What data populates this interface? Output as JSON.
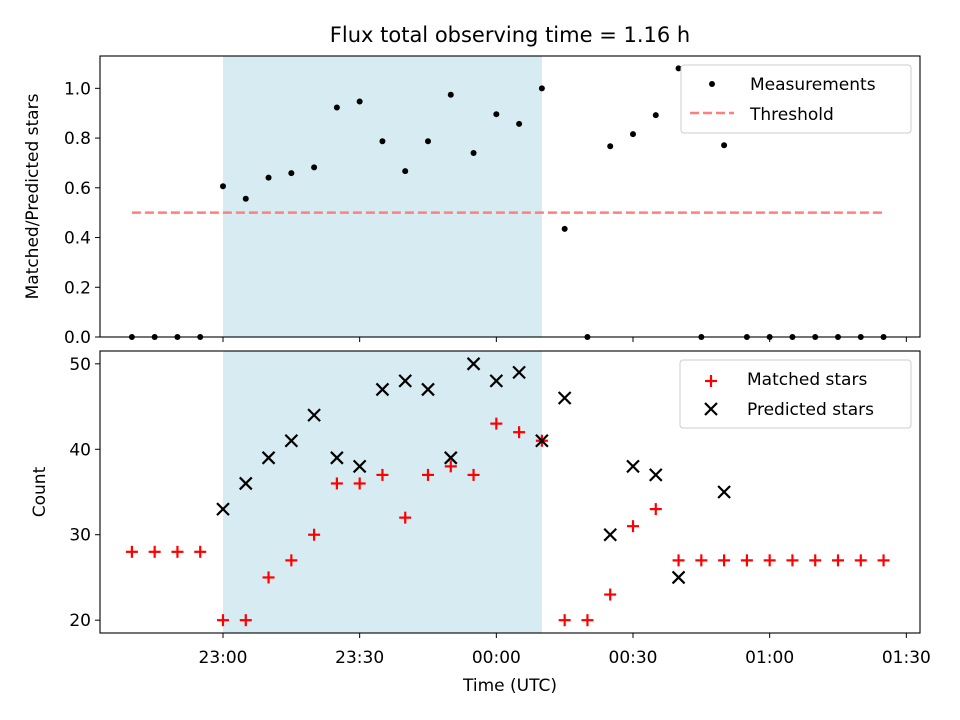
{
  "chart_data": [
    {
      "type": "scatter",
      "title": "Flux total observing time = 1.16 h",
      "xlabel": "",
      "ylabel": "Matched/Predicted stars",
      "ylim": [
        0,
        1.13
      ],
      "yticks": [
        "0.0",
        "0.2",
        "0.4",
        "0.6",
        "0.8",
        "1.0"
      ],
      "ytick_values": [
        0,
        0.2,
        0.4,
        0.6,
        0.8,
        1.0
      ],
      "shaded_span": {
        "from": "23:00",
        "to": "00:10",
        "color": "#add8e6"
      },
      "legend": {
        "placement": "top-right",
        "entries": [
          "Measurements",
          "Threshold"
        ]
      },
      "series": [
        {
          "name": "Measurements",
          "marker": "dot",
          "color": "#000000",
          "x": [
            "22:40",
            "22:45",
            "22:50",
            "22:55",
            "23:00",
            "23:05",
            "23:10",
            "23:15",
            "23:20",
            "23:25",
            "23:30",
            "23:35",
            "23:40",
            "23:45",
            "23:50",
            "23:55",
            "00:00",
            "00:05",
            "00:10",
            "00:15",
            "00:20",
            "00:25",
            "00:30",
            "00:35",
            "00:40",
            "00:45",
            "00:50",
            "00:55",
            "01:00",
            "01:05",
            "01:10",
            "01:15",
            "01:20",
            "01:25"
          ],
          "y": [
            0,
            0,
            0,
            0,
            0.606,
            0.556,
            0.641,
            0.659,
            0.682,
            0.923,
            0.947,
            0.787,
            0.667,
            0.787,
            0.974,
            0.74,
            0.896,
            0.857,
            1.0,
            0.435,
            0,
            0.767,
            0.816,
            0.892,
            1.08,
            0,
            0.771,
            0,
            0,
            0,
            0,
            0,
            0,
            0
          ]
        },
        {
          "name": "Threshold",
          "line": "dashed",
          "color": "#ff7f7f",
          "x": [
            "22:40",
            "01:25"
          ],
          "y": [
            0.5,
            0.5
          ]
        }
      ]
    },
    {
      "type": "scatter",
      "title": "",
      "xlabel": "Time (UTC)",
      "ylabel": "Count",
      "ylim": [
        18.5,
        51.5
      ],
      "yticks": [
        "20",
        "30",
        "40",
        "50"
      ],
      "ytick_values": [
        20,
        30,
        40,
        50
      ],
      "xlim": [
        "22:33",
        "01:33"
      ],
      "xticks": [
        "23:00",
        "23:30",
        "00:00",
        "00:30",
        "01:00",
        "01:30"
      ],
      "shaded_span": {
        "from": "23:00",
        "to": "00:10",
        "color": "#add8e6"
      },
      "legend": {
        "placement": "top-right",
        "entries": [
          "Matched stars",
          "Predicted stars"
        ]
      },
      "series": [
        {
          "name": "Matched stars",
          "marker": "plus",
          "color": "#ff0000",
          "x": [
            "22:40",
            "22:45",
            "22:50",
            "22:55",
            "23:00",
            "23:05",
            "23:10",
            "23:15",
            "23:20",
            "23:25",
            "23:30",
            "23:35",
            "23:40",
            "23:45",
            "23:50",
            "23:55",
            "00:00",
            "00:05",
            "00:10",
            "00:15",
            "00:20",
            "00:25",
            "00:30",
            "00:35",
            "00:40",
            "00:45",
            "00:50",
            "00:55",
            "01:00",
            "01:05",
            "01:10",
            "01:15",
            "01:20",
            "01:25"
          ],
          "y": [
            28,
            28,
            28,
            28,
            20,
            20,
            25,
            27,
            30,
            36,
            36,
            37,
            32,
            37,
            38,
            37,
            43,
            42,
            41,
            20,
            20,
            23,
            31,
            33,
            27,
            27,
            27,
            27,
            27,
            27,
            27,
            27,
            27,
            27
          ]
        },
        {
          "name": "Predicted stars",
          "marker": "x",
          "color": "#000000",
          "x": [
            "23:00",
            "23:05",
            "23:10",
            "23:15",
            "23:20",
            "23:25",
            "23:30",
            "23:35",
            "23:40",
            "23:45",
            "23:50",
            "23:55",
            "00:00",
            "00:05",
            "00:10",
            "00:15",
            "00:25",
            "00:30",
            "00:35",
            "00:40",
            "00:50"
          ],
          "y": [
            33,
            36,
            39,
            41,
            44,
            39,
            38,
            47,
            48,
            47,
            39,
            50,
            48,
            49,
            41,
            46,
            30,
            38,
            37,
            25,
            35
          ]
        }
      ]
    }
  ]
}
